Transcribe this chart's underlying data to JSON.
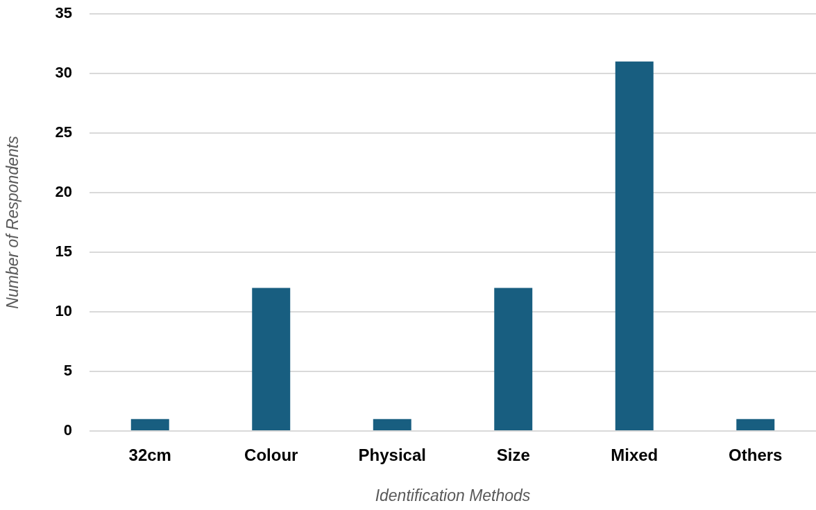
{
  "chart_data": {
    "type": "bar",
    "xlabel": "Identification Methods",
    "ylabel": "Number of Respondents",
    "categories": [
      "32cm",
      "Colour",
      "Physical",
      "Size",
      "Mixed",
      "Others"
    ],
    "values": [
      1,
      12,
      1,
      12,
      31,
      1
    ],
    "color": "#185e80",
    "ylim": [
      0,
      35
    ],
    "yticks": [
      0,
      5,
      10,
      15,
      20,
      25,
      30,
      35
    ],
    "grid": "y"
  }
}
